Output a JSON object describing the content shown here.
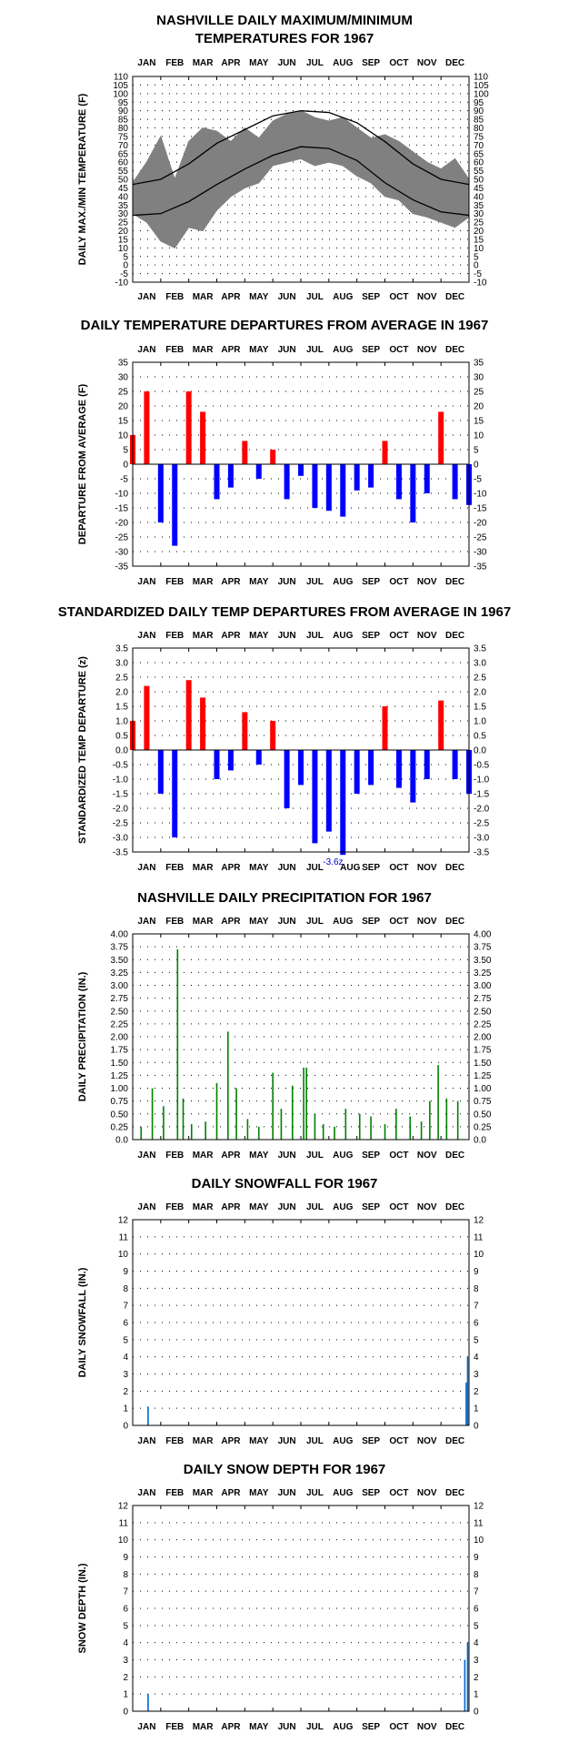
{
  "months": [
    "JAN",
    "FEB",
    "MAR",
    "APR",
    "MAY",
    "JUN",
    "JUL",
    "AUG",
    "SEP",
    "OCT",
    "NOV",
    "DEC"
  ],
  "colors": {
    "temp_obs": "#808080",
    "normals": "#000000",
    "warm": "#ff0000",
    "cold": "#0000ff",
    "precip": "#008000",
    "snow": "#0066cc",
    "grid": "#000000"
  },
  "chart_data": [
    {
      "id": "temps",
      "type": "area",
      "title": [
        "NASHVILLE DAILY MAXIMUM/MINIMUM",
        "TEMPERATURES FOR 1967"
      ],
      "ylabel": "DAILY MAX./MIN TEMPERATURE (F)",
      "ylim": [
        -10,
        110
      ],
      "ytick_step": 5,
      "yticks": [
        "110",
        "105",
        "100",
        "95",
        "90",
        "85",
        "80",
        "75",
        "70",
        "65",
        "60",
        "55",
        "50",
        "45",
        "40",
        "35",
        "30",
        "25",
        "20",
        "15",
        "10",
        "5",
        "0",
        "-5",
        "-10"
      ],
      "grid": true,
      "series": [
        {
          "name": "",
          "kind": "observed_max",
          "x_months": [
            0.0,
            0.5,
            1.0,
            1.5,
            2.0,
            2.5,
            3.0,
            3.5,
            4.0,
            4.5,
            5.0,
            5.5,
            6.0,
            6.5,
            7.0,
            7.5,
            8.0,
            8.5,
            9.0,
            9.5,
            10.0,
            10.5,
            11.0,
            11.5,
            12.0
          ],
          "values": [
            48,
            60,
            75,
            50,
            72,
            80,
            78,
            72,
            80,
            74,
            84,
            88,
            90,
            86,
            84,
            86,
            80,
            74,
            76,
            72,
            66,
            60,
            56,
            62,
            50
          ]
        },
        {
          "name": "",
          "kind": "observed_min",
          "x_months": [
            0.0,
            0.5,
            1.0,
            1.5,
            2.0,
            2.5,
            3.0,
            3.5,
            4.0,
            4.5,
            5.0,
            5.5,
            6.0,
            6.5,
            7.0,
            7.5,
            8.0,
            8.5,
            9.0,
            9.5,
            10.0,
            10.5,
            11.0,
            11.5,
            12.0
          ],
          "values": [
            30,
            25,
            14,
            10,
            22,
            20,
            32,
            40,
            45,
            48,
            58,
            60,
            62,
            58,
            60,
            58,
            52,
            48,
            40,
            38,
            30,
            28,
            25,
            22,
            28
          ]
        },
        {
          "name": "",
          "kind": "normal_max",
          "x_months": [
            0,
            1,
            2,
            3,
            4,
            5,
            6,
            7,
            8,
            9,
            10,
            11,
            12
          ],
          "values": [
            47,
            50,
            59,
            71,
            79,
            87,
            90,
            89,
            83,
            72,
            59,
            50,
            47
          ]
        },
        {
          "name": "",
          "kind": "normal_min",
          "x_months": [
            0,
            1,
            2,
            3,
            4,
            5,
            6,
            7,
            8,
            9,
            10,
            11,
            12
          ],
          "values": [
            29,
            30,
            37,
            47,
            56,
            64,
            69,
            68,
            61,
            48,
            38,
            31,
            29
          ]
        }
      ]
    },
    {
      "id": "departures",
      "type": "bar",
      "title": [
        "DAILY TEMPERATURE DEPARTURES FROM AVERAGE IN 1967"
      ],
      "ylabel": "DEPARTURE FROM AVERAGE (F)",
      "ylim": [
        -35,
        35
      ],
      "ytick_step": 5,
      "yticks": [
        "35",
        "30",
        "25",
        "20",
        "15",
        "10",
        "5",
        "0",
        "-5",
        "-10",
        "-15",
        "-20",
        "-25",
        "-30",
        "-35"
      ],
      "grid": true,
      "x_months": [
        0.0,
        0.5,
        1.0,
        1.5,
        2.0,
        2.5,
        3.0,
        3.5,
        4.0,
        4.5,
        5.0,
        5.5,
        6.0,
        6.5,
        7.0,
        7.5,
        8.0,
        8.5,
        9.0,
        9.5,
        10.0,
        10.5,
        11.0,
        11.5,
        12.0
      ],
      "values": [
        10,
        25,
        -20,
        -28,
        25,
        18,
        -12,
        -8,
        8,
        -5,
        5,
        -12,
        -4,
        -15,
        -16,
        -18,
        -9,
        -8,
        8,
        -12,
        -20,
        -10,
        18,
        -12,
        -14
      ]
    },
    {
      "id": "std_departures",
      "type": "bar",
      "title": [
        "STANDARDIZED DAILY TEMP DEPARTURES FROM AVERAGE IN 1967"
      ],
      "ylabel": "STANDARDIZED TEMP DEPARTURE (z)",
      "ylim": [
        -3.5,
        3.5
      ],
      "ytick_step": 0.5,
      "yticks": [
        "3.5",
        "3.0",
        "2.5",
        "2.0",
        "1.5",
        "1.0",
        "0.5",
        "0.0",
        "-0.5",
        "-1.0",
        "-1.5",
        "-2.0",
        "-2.5",
        "-3.0",
        "-3.5"
      ],
      "grid": true,
      "x_months": [
        0.0,
        0.5,
        1.0,
        1.5,
        2.0,
        2.5,
        3.0,
        3.5,
        4.0,
        4.5,
        5.0,
        5.5,
        6.0,
        6.5,
        7.0,
        7.5,
        8.0,
        8.5,
        9.0,
        9.5,
        10.0,
        10.5,
        11.0,
        11.5,
        12.0
      ],
      "values": [
        1.0,
        2.2,
        -1.5,
        -3.0,
        2.4,
        1.8,
        -1.0,
        -0.7,
        1.3,
        -0.5,
        1.0,
        -2.0,
        -1.2,
        -3.2,
        -2.8,
        -3.6,
        -1.5,
        -1.2,
        1.5,
        -1.3,
        -1.8,
        -1.0,
        1.7,
        -1.0,
        -1.5
      ],
      "annotation": {
        "x_month": 7.15,
        "text": "-3.6z"
      }
    },
    {
      "id": "precip",
      "type": "bar",
      "title": [
        "NASHVILLE DAILY PRECIPITATION FOR 1967"
      ],
      "ylabel": "DAILY PRECIPITATION (IN.)",
      "ylim": [
        0,
        4.0
      ],
      "ytick_step": 0.25,
      "yticks": [
        "4.00",
        "3.75",
        "3.50",
        "3.25",
        "3.00",
        "2.75",
        "2.50",
        "2.25",
        "2.00",
        "1.75",
        "1.50",
        "1.25",
        "1.00",
        "0.75",
        "0.50",
        "0.25",
        "0.0"
      ],
      "grid": true,
      "x_months": [
        0.3,
        0.7,
        1.1,
        1.6,
        1.8,
        2.1,
        2.6,
        3.0,
        3.4,
        3.7,
        4.1,
        4.5,
        5.0,
        5.3,
        5.7,
        6.1,
        6.2,
        6.5,
        6.8,
        7.2,
        7.6,
        8.1,
        8.5,
        9.0,
        9.4,
        9.9,
        10.3,
        10.6,
        10.9,
        11.2,
        11.6
      ],
      "values": [
        0.25,
        1.0,
        0.65,
        3.7,
        0.8,
        0.3,
        0.35,
        1.1,
        2.1,
        1.0,
        0.4,
        0.25,
        1.3,
        0.6,
        1.05,
        1.4,
        1.4,
        0.5,
        0.3,
        0.25,
        0.6,
        0.5,
        0.45,
        0.3,
        0.6,
        0.45,
        0.35,
        0.75,
        1.45,
        0.8,
        0.75
      ]
    },
    {
      "id": "snowfall",
      "type": "bar",
      "title": [
        "DAILY SNOWFALL FOR 1967"
      ],
      "ylabel": "DAILY SNOWFALL (IN.)",
      "ylim": [
        0,
        12
      ],
      "ytick_step": 1,
      "yticks": [
        "12",
        "11",
        "10",
        "9",
        "8",
        "7",
        "6",
        "5",
        "4",
        "3",
        "2",
        "1",
        "0"
      ],
      "grid": true,
      "x_months": [
        0.55,
        11.9,
        11.95
      ],
      "values": [
        1.1,
        2.5,
        4.0
      ]
    },
    {
      "id": "snowdepth",
      "type": "bar",
      "title": [
        "DAILY SNOW DEPTH FOR 1967"
      ],
      "ylabel": "SNOW DEPTH (IN.)",
      "ylim": [
        0,
        12
      ],
      "ytick_step": 1,
      "yticks": [
        "12",
        "11",
        "10",
        "9",
        "8",
        "7",
        "6",
        "5",
        "4",
        "3",
        "2",
        "1",
        "0"
      ],
      "grid": true,
      "x_months": [
        0.55,
        11.85,
        11.95
      ],
      "values": [
        1.0,
        3.0,
        4.0
      ]
    }
  ]
}
